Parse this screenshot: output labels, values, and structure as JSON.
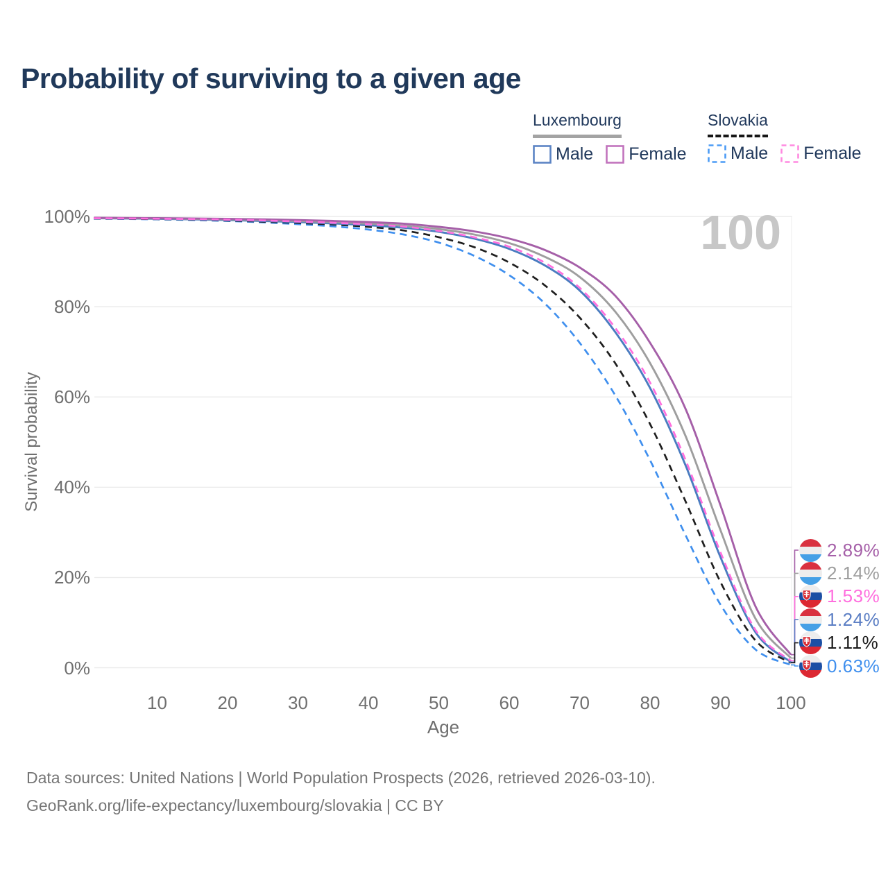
{
  "page": {
    "title": "Probability of surviving to a given age",
    "watermark": "100",
    "source_line1": "Data sources: United Nations | World Population Prospects (2026, retrieved 2026-03-10).",
    "source_line2": "GeoRank.org/life-expectancy/luxembourg/slovakia | CC BY"
  },
  "legend": {
    "luxembourg": {
      "title": "Luxembourg",
      "underline": {
        "style": "solid",
        "color": "#a3a3a3"
      },
      "items": [
        {
          "label": "Male",
          "color": "#5b84c4",
          "dashed": false
        },
        {
          "label": "Female",
          "color": "#c173bd",
          "dashed": false
        }
      ]
    },
    "slovakia": {
      "title": "Slovakia",
      "underline": {
        "style": "dashed",
        "color": "#161616"
      },
      "items": [
        {
          "label": "Male",
          "color": "#4b9bf5",
          "dashed": true
        },
        {
          "label": "Female",
          "color": "#ff8ae0",
          "dashed": true
        }
      ]
    }
  },
  "chart_data": {
    "type": "line",
    "title": "Probability of surviving to a given age",
    "xlabel": "Age",
    "ylabel": "Survival probability",
    "xlim": [
      1,
      100
    ],
    "ylim": [
      0,
      100
    ],
    "grid": "horizontal",
    "x_ticks": [
      {
        "value": 10,
        "label": "10"
      },
      {
        "value": 20,
        "label": "20"
      },
      {
        "value": 30,
        "label": "30"
      },
      {
        "value": 40,
        "label": "40"
      },
      {
        "value": 50,
        "label": "50"
      },
      {
        "value": 60,
        "label": "60"
      },
      {
        "value": 70,
        "label": "70"
      },
      {
        "value": 80,
        "label": "80"
      },
      {
        "value": 90,
        "label": "90"
      },
      {
        "value": 100,
        "label": "100"
      }
    ],
    "y_ticks": [
      {
        "value": 0,
        "label": "0%"
      },
      {
        "value": 20,
        "label": "20%"
      },
      {
        "value": 40,
        "label": "40%"
      },
      {
        "value": 60,
        "label": "60%"
      },
      {
        "value": 80,
        "label": "80%"
      },
      {
        "value": 100,
        "label": "100%"
      }
    ],
    "ages": [
      1,
      5,
      10,
      15,
      20,
      25,
      30,
      35,
      40,
      45,
      50,
      55,
      60,
      65,
      70,
      75,
      80,
      85,
      90,
      95,
      100
    ],
    "series": [
      {
        "name": "Slovakia Male",
        "country": "slovakia",
        "sex": "male",
        "color": "#3f8fee",
        "dashed": true,
        "end_label": "0.63%",
        "values": [
          99.5,
          99.45,
          99.35,
          99.2,
          99.0,
          98.7,
          98.3,
          97.8,
          97.1,
          96.0,
          94.2,
          91.3,
          87.0,
          80.8,
          72.0,
          60.5,
          46.0,
          29.5,
          14.0,
          4.0,
          0.63
        ]
      },
      {
        "name": "Slovakia Total",
        "country": "slovakia",
        "sex": "both",
        "color": "#1f1f1f",
        "dashed": true,
        "end_label": "1.11%",
        "values": [
          99.55,
          99.5,
          99.42,
          99.3,
          99.1,
          98.85,
          98.55,
          98.2,
          97.7,
          96.9,
          95.4,
          93.2,
          89.8,
          84.8,
          77.6,
          67.6,
          54.0,
          37.0,
          19.0,
          6.0,
          1.11
        ]
      },
      {
        "name": "Luxembourg Male",
        "country": "luxembourg",
        "sex": "male",
        "color": "#4a7cc0",
        "dashed": false,
        "end_label": "1.24%",
        "values": [
          99.6,
          99.55,
          99.48,
          99.36,
          99.2,
          99.0,
          98.75,
          98.45,
          98.05,
          97.5,
          96.6,
          95.1,
          92.8,
          89.2,
          83.6,
          74.5,
          62.0,
          45.0,
          24.5,
          7.8,
          1.24
        ]
      },
      {
        "name": "Luxembourg Total",
        "country": "luxembourg",
        "sex": "both",
        "color": "#9e9e9e",
        "dashed": false,
        "end_label": "2.14%",
        "values": [
          99.65,
          99.6,
          99.55,
          99.46,
          99.35,
          99.18,
          98.98,
          98.72,
          98.4,
          97.95,
          97.2,
          96.0,
          94.1,
          91.1,
          86.6,
          79.0,
          67.5,
          51.5,
          30.5,
          10.8,
          2.14
        ]
      },
      {
        "name": "Luxembourg Female",
        "country": "luxembourg",
        "sex": "female",
        "color": "#a55fa8",
        "dashed": false,
        "end_label": "2.89%",
        "values": [
          99.7,
          99.66,
          99.62,
          99.56,
          99.48,
          99.36,
          99.2,
          99.0,
          98.75,
          98.4,
          97.7,
          96.7,
          95.1,
          92.6,
          88.7,
          82.5,
          72.0,
          57.5,
          36.0,
          13.5,
          2.89
        ]
      },
      {
        "name": "Slovakia Female",
        "country": "slovakia",
        "sex": "female",
        "color": "#ff6ede",
        "dashed": true,
        "end_label": "1.53%",
        "values": [
          99.6,
          99.56,
          99.5,
          99.42,
          99.3,
          99.12,
          98.88,
          98.6,
          98.25,
          97.75,
          96.8,
          95.4,
          93.3,
          89.8,
          84.2,
          75.4,
          63.2,
          46.2,
          25.6,
          8.3,
          1.53
        ]
      }
    ],
    "end_labels": [
      {
        "text": "2.89%",
        "color": "#a55fa8",
        "flag": "luxembourg",
        "series": "Luxembourg Female"
      },
      {
        "text": "2.14%",
        "color": "#9e9e9e",
        "flag": "luxembourg",
        "series": "Luxembourg Total"
      },
      {
        "text": "1.53%",
        "color": "#ff6ede",
        "flag": "slovakia",
        "series": "Slovakia Female"
      },
      {
        "text": "1.24%",
        "color": "#5b7ec4",
        "flag": "luxembourg",
        "series": "Luxembourg Male"
      },
      {
        "text": "1.11%",
        "color": "#1a1a1a",
        "flag": "slovakia",
        "series": "Slovakia Total"
      },
      {
        "text": "0.63%",
        "color": "#3f8fee",
        "flag": "slovakia",
        "series": "Slovakia Male"
      }
    ],
    "legend_position": "top-right"
  }
}
